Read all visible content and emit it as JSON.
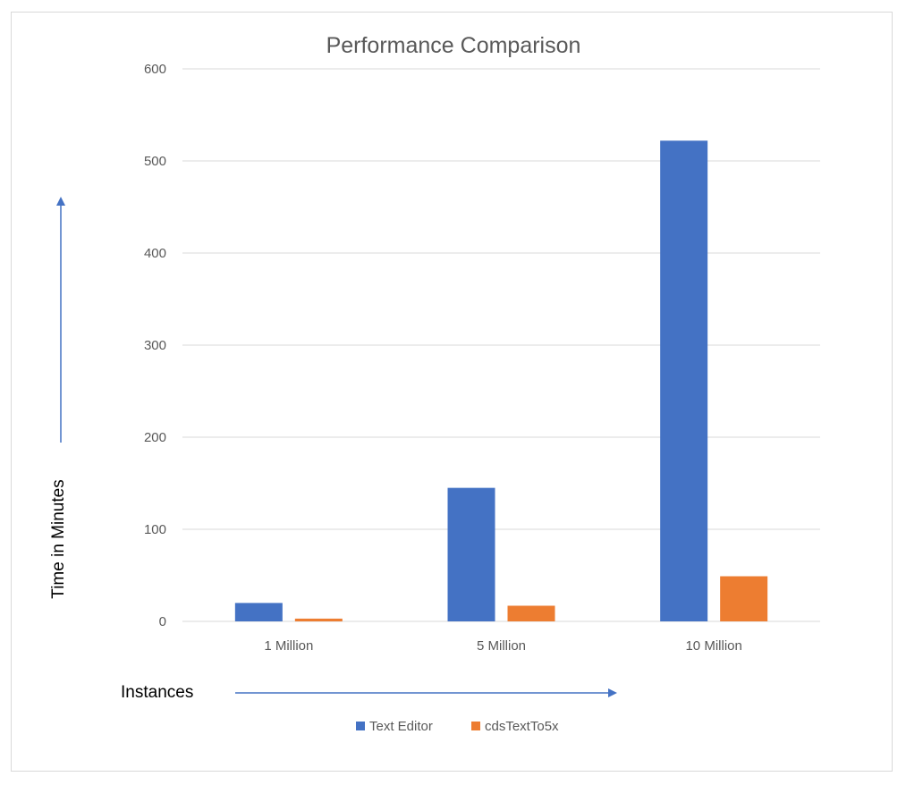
{
  "chart_data": {
    "type": "bar",
    "title": "Performance Comparison",
    "xlabel": "Instances",
    "ylabel": "Time in Minutes",
    "categories": [
      "1 Million",
      "5 Million",
      "10 Million"
    ],
    "series": [
      {
        "name": "Text Editor",
        "color": "#4472C4",
        "values": [
          20,
          145,
          522
        ]
      },
      {
        "name": "cdsTextTo5x",
        "color": "#ED7D31",
        "values": [
          3,
          17,
          49
        ]
      }
    ],
    "ylim": [
      0,
      600
    ],
    "yticks": [
      0,
      100,
      200,
      300,
      400,
      500,
      600
    ],
    "grid": true,
    "legend_position": "bottom",
    "axis_arrow_color": "#4472C4"
  }
}
